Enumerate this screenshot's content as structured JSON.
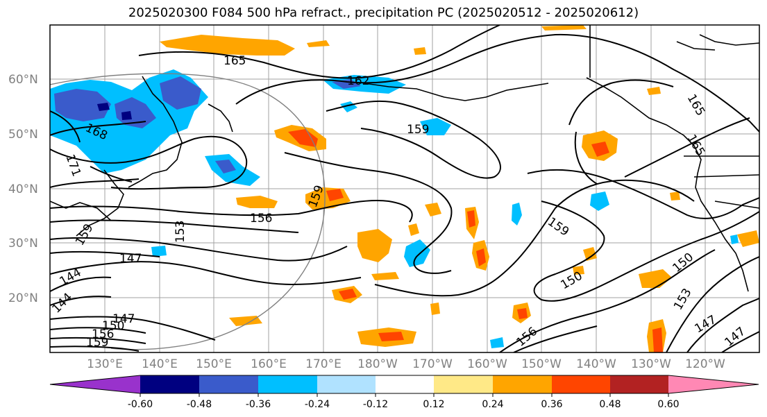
{
  "title": "2025020300 F084 500 hPa refract., precipitation PC (2025020512 - 2025020612)",
  "lat_labels": [
    "60°N",
    "50°N",
    "40°N",
    "30°N",
    "20°N"
  ],
  "lon_labels": [
    "130°E",
    "140°E",
    "150°E",
    "160°E",
    "170°E",
    "180°W",
    "170°W",
    "160°W",
    "150°W",
    "140°W",
    "130°W",
    "120°W"
  ],
  "contour_labels": [
    "165",
    "162",
    "159",
    "168",
    "171",
    "159",
    "156",
    "153",
    "159",
    "147",
    "144",
    "144",
    "147",
    "150",
    "156",
    "159",
    "159",
    "156",
    "150",
    "153",
    "150",
    "147",
    "147",
    "165",
    "165"
  ],
  "colorbar": {
    "ticks": [
      "-0.60",
      "-0.48",
      "-0.36",
      "-0.24",
      "-0.12",
      "0.12",
      "0.24",
      "0.36",
      "0.48",
      "0.60"
    ],
    "colors": [
      "#9932cc",
      "#000080",
      "#3a5bcb",
      "#00bfff",
      "#b0e2ff",
      "#ffffff",
      "#ffe987",
      "#ffa500",
      "#ff4500",
      "#b22222",
      "#ff88b4"
    ]
  },
  "land_color": "#000000"
}
